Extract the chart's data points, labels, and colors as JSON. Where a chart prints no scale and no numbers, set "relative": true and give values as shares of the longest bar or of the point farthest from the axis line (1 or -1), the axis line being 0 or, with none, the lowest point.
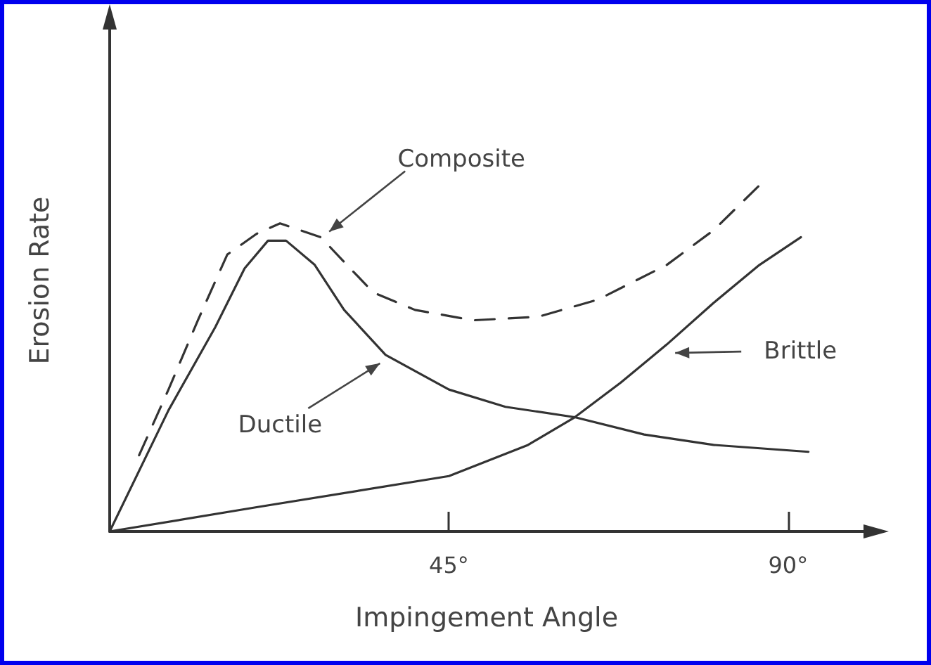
{
  "chart_data": {
    "type": "line",
    "relative": true,
    "xlabel": "Impingement Angle",
    "ylabel": "Erosion Rate",
    "xlim": [
      0,
      100
    ],
    "xticks": [
      {
        "value": 45,
        "label": "45°"
      },
      {
        "value": 90,
        "label": "90°"
      }
    ],
    "grid": false,
    "legend": false,
    "marker": "none",
    "series": [
      {
        "name": "Ductile",
        "color": "#333333",
        "line_style": "solid",
        "x": [
          0,
          7.8,
          14,
          17.9,
          21,
          23.4,
          27.2,
          31.1,
          36.6,
          45,
          52.5,
          61.7,
          70.9,
          80.1,
          92.7
        ],
        "values": [
          0,
          0.35,
          0.59,
          0.76,
          0.84,
          0.84,
          0.77,
          0.64,
          0.51,
          0.41,
          0.36,
          0.33,
          0.28,
          0.25,
          0.23
        ]
      },
      {
        "name": "Brittle",
        "color": "#333333",
        "line_style": "solid",
        "x": [
          0,
          19.5,
          45,
          55.5,
          61.7,
          67.8,
          73.9,
          80.1,
          86.2,
          91.7
        ],
        "values": [
          0,
          0.07,
          0.16,
          0.25,
          0.33,
          0.43,
          0.54,
          0.66,
          0.77,
          0.85
        ]
      },
      {
        "name": "Composite",
        "color": "#333333",
        "line_style": "dashed",
        "x": [
          3.9,
          7.8,
          11.7,
          15.6,
          19.5,
          22.6,
          28,
          31.9,
          35,
          40.5,
          48.2,
          56.8,
          64.8,
          73.9,
          80.1,
          86.2
        ],
        "values": [
          0.22,
          0.41,
          0.61,
          0.8,
          0.86,
          0.89,
          0.85,
          0.76,
          0.69,
          0.64,
          0.61,
          0.62,
          0.67,
          0.77,
          0.87,
          1.0
        ]
      }
    ]
  }
}
